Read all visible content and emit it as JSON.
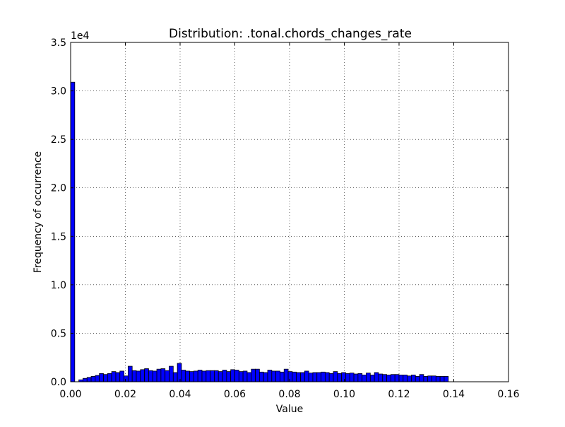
{
  "chart_data": {
    "type": "bar",
    "title": "Distribution: .tonal.chords_changes_rate",
    "xlabel": "Value",
    "ylabel": "Frequency of occurrence",
    "y_offset_label": "1e4",
    "xlim": [
      0.0,
      0.16
    ],
    "ylim": [
      0,
      35000
    ],
    "x_ticks": [
      "0.00",
      "0.02",
      "0.04",
      "0.06",
      "0.08",
      "0.10",
      "0.12",
      "0.14",
      "0.16"
    ],
    "y_ticks": [
      "0.0",
      "0.5",
      "1.0",
      "1.5",
      "2.0",
      "2.5",
      "3.0",
      "3.5"
    ],
    "grid": true,
    "bin_start": 0.0,
    "bin_width": 0.0015,
    "bar_color": "#0000ff",
    "values": [
      30900,
      0,
      200,
      350,
      450,
      550,
      650,
      850,
      750,
      850,
      1050,
      950,
      1100,
      600,
      1600,
      1150,
      1100,
      1250,
      1350,
      1150,
      1100,
      1300,
      1350,
      1150,
      1600,
      950,
      1900,
      1200,
      1100,
      1050,
      1100,
      1200,
      1100,
      1150,
      1150,
      1150,
      1050,
      1200,
      1050,
      1250,
      1200,
      1050,
      1100,
      950,
      1300,
      1300,
      1000,
      950,
      1200,
      1100,
      1100,
      1000,
      1300,
      1050,
      1000,
      950,
      950,
      1100,
      900,
      950,
      950,
      1000,
      950,
      850,
      1050,
      850,
      950,
      850,
      900,
      800,
      850,
      700,
      900,
      700,
      950,
      800,
      750,
      700,
      750,
      750,
      700,
      700,
      600,
      700,
      550,
      750,
      550,
      600,
      600,
      550,
      550,
      550,
      0,
      0,
      0,
      0,
      0,
      0,
      0,
      0
    ]
  }
}
